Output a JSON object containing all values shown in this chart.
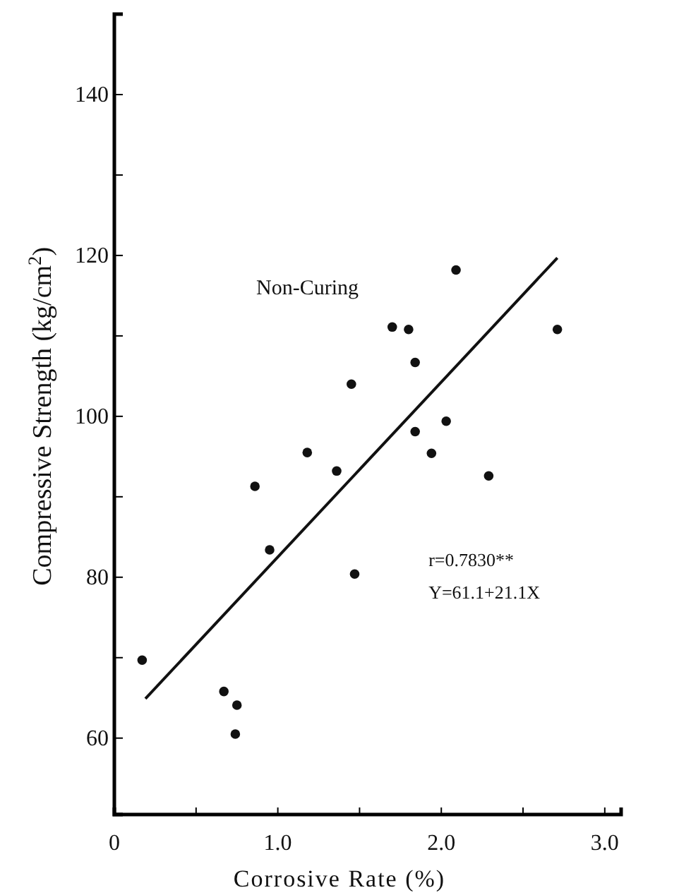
{
  "chart_data": {
    "type": "scatter",
    "xlabel": "Corrosive Rate (%)",
    "ylabel": "Compressive Strength (kg/cm$^{2}$)",
    "annotations": [
      "Non-Curing",
      "r=0.7830**",
      "Y=61.1+21.1X"
    ],
    "xlim": [
      0,
      3.1
    ],
    "xticks": [
      0,
      {
        "value": 0.5,
        "label": null
      },
      {
        "value": 1,
        "label": "1.0"
      },
      {
        "value": 1.5,
        "label": null
      },
      {
        "value": 2,
        "label": "2.0"
      },
      {
        "value": 2.5,
        "label": null
      },
      {
        "value": 3,
        "label": "3.0"
      }
    ],
    "ylim": [
      50.5,
      150
    ],
    "yticks": [
      60,
      {
        "value": 70,
        "label": null
      },
      80,
      {
        "value": 90,
        "label": null
      },
      100,
      {
        "value": 110,
        "label": null
      },
      120,
      {
        "value": 130,
        "label": null
      },
      140
    ],
    "grid": false,
    "series": [
      {
        "marker": "circle",
        "color": "#111111",
        "x": [
          0.17,
          0.67,
          0.75,
          0.74,
          0.86,
          0.95,
          1.18,
          1.36,
          1.45,
          1.47,
          1.7,
          1.8,
          1.84,
          1.84,
          1.94,
          2.03,
          2.09,
          2.29,
          2.71
        ],
        "values": [
          69.7,
          65.8,
          64.1,
          60.5,
          91.3,
          83.4,
          95.5,
          93.2,
          104.0,
          80.4,
          111.1,
          110.8,
          106.7,
          98.1,
          95.4,
          99.4,
          118.2,
          92.6,
          110.8
        ]
      },
      {
        "type": "line",
        "color": "#111111",
        "line_style": "solid",
        "x": [
          0.19,
          2.71
        ],
        "values": [
          64.9,
          119.7
        ]
      }
    ]
  }
}
